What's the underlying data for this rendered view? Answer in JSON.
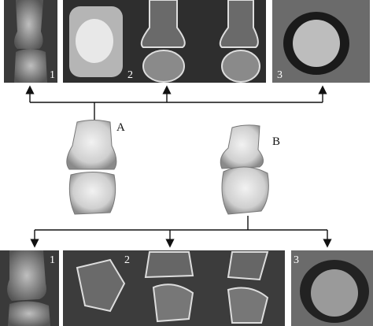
{
  "top_panels": [
    {
      "label": "1"
    },
    {
      "label": "2"
    },
    {
      "label": "3"
    }
  ],
  "bones": [
    {
      "label": "A"
    },
    {
      "label": "B"
    }
  ],
  "bottom_panels": [
    {
      "label": "1"
    },
    {
      "label": "2"
    },
    {
      "label": "3"
    }
  ]
}
